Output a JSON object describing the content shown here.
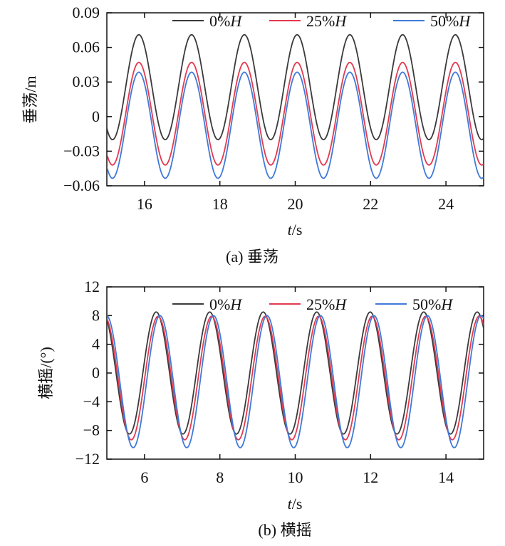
{
  "chart_data": [
    {
      "type": "line",
      "caption": "(a) 垂荡",
      "ylabel": "垂荡/m",
      "xlabel_italic": "t",
      "xlabel_rest": "/s",
      "xlim": [
        15,
        25
      ],
      "ylim": [
        -0.06,
        0.09
      ],
      "xticks": [
        16,
        18,
        20,
        22,
        24
      ],
      "yticks": [
        0.09,
        0.06,
        0.03,
        0,
        -0.03,
        -0.06
      ],
      "ytick_labels": [
        "0.09",
        "0.06",
        "0.03",
        "0",
        "−0.03",
        "−0.06"
      ],
      "grid": false,
      "legend_position": "top-right",
      "series": [
        {
          "name": "0%H",
          "name_prefix": "0%",
          "name_italic": "H",
          "color": "#3a3a3a",
          "mean": 0.0255,
          "amplitude": 0.0455,
          "period": 1.4,
          "peak_x": 15.85
        },
        {
          "name": "25%H",
          "name_prefix": "25%",
          "name_italic": "H",
          "color": "#e23a4f",
          "mean": 0.0025,
          "amplitude": 0.0445,
          "period": 1.4,
          "peak_x": 15.85
        },
        {
          "name": "50%H",
          "name_prefix": "50%",
          "name_italic": "H",
          "color": "#3f7ad9",
          "mean": -0.0075,
          "amplitude": 0.046,
          "period": 1.4,
          "peak_x": 15.85
        }
      ]
    },
    {
      "type": "line",
      "caption": "(b) 横摇",
      "ylabel": "横摇/(°)",
      "xlabel_italic": "t",
      "xlabel_rest": "/s",
      "xlim": [
        5,
        15
      ],
      "ylim": [
        -12,
        12
      ],
      "xticks": [
        6,
        8,
        10,
        12,
        14
      ],
      "yticks": [
        12,
        8,
        4,
        0,
        -4,
        -8,
        -12
      ],
      "ytick_labels": [
        "12",
        "8",
        "4",
        "0",
        "−4",
        "−8",
        "−12"
      ],
      "grid": false,
      "legend_position": "top",
      "series": [
        {
          "name": "0%H",
          "name_prefix": "0%",
          "name_italic": "H",
          "color": "#3a3a3a",
          "mean": 0,
          "amplitude": 8.5,
          "period": 1.42,
          "trough_x": 5.6
        },
        {
          "name": "25%H",
          "name_prefix": "25%",
          "name_italic": "H",
          "color": "#e23a4f",
          "mean": -0.7,
          "amplitude": 8.6,
          "period": 1.42,
          "trough_x": 5.65
        },
        {
          "name": "50%H",
          "name_prefix": "50%",
          "name_italic": "H",
          "color": "#3f7ad9",
          "mean": -1.2,
          "amplitude": 9.2,
          "period": 1.42,
          "trough_x": 5.7
        }
      ]
    }
  ]
}
